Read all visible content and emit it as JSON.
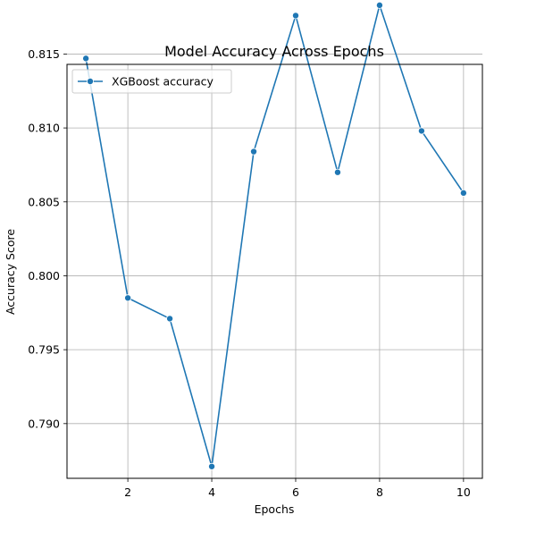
{
  "chart_data": {
    "type": "line",
    "title": "Model Accuracy Across Epochs",
    "xlabel": "Epochs",
    "ylabel": "Accuracy Score",
    "xlim": [
      0.55,
      10.45
    ],
    "ylim": [
      0.7863,
      0.8143
    ],
    "x_ticks": [
      2,
      4,
      6,
      8,
      10
    ],
    "x_tick_labels": [
      "2",
      "4",
      "6",
      "8",
      "10"
    ],
    "y_ticks": [
      0.79,
      0.795,
      0.8,
      0.805,
      0.81,
      0.815
    ],
    "y_tick_labels": [
      "0.790",
      "0.795",
      "0.800",
      "0.805",
      "0.810",
      "0.815"
    ],
    "grid": true,
    "legend_position": "top-left",
    "series": [
      {
        "name": "XGBoost accuracy",
        "color": "#1f77b4",
        "marker": "circle",
        "x": [
          1,
          2,
          3,
          4,
          5,
          6,
          7,
          8,
          9,
          10
        ],
        "y": [
          0.8147,
          0.7985,
          0.7971,
          0.7871,
          0.8084,
          0.8176,
          0.807,
          0.8183,
          0.8098,
          0.8056
        ]
      }
    ]
  }
}
